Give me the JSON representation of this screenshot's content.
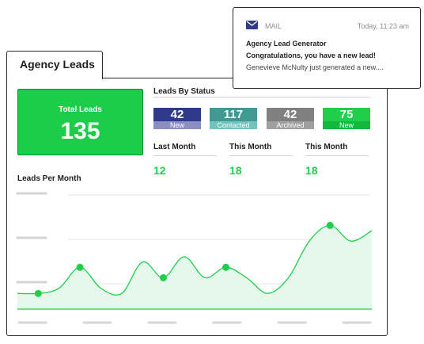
{
  "card": {
    "title": "Agency Leads"
  },
  "total_leads": {
    "label": "Total Leads",
    "value": "135"
  },
  "status_section": {
    "title": "Leads By Status",
    "items": [
      {
        "value": "42",
        "label": "New",
        "color": "#2f3a8c",
        "label_color": "#8a8ec3"
      },
      {
        "value": "117",
        "label": "Contacted",
        "color": "#3e9a93",
        "label_color": "#6fc4bc"
      },
      {
        "value": "42",
        "label": "Archived",
        "color": "#808080",
        "label_color": "#9f9f9f"
      },
      {
        "value": "75",
        "label": "New",
        "color": "#1fcf4a",
        "label_color": "#14b83d"
      }
    ]
  },
  "periods": [
    {
      "label": "Last Month",
      "value": "12"
    },
    {
      "label": "This Month",
      "value": "18"
    },
    {
      "label": "This Month",
      "value": "18"
    }
  ],
  "chart_title": "Leads Per Month",
  "chart_data": {
    "type": "area",
    "title": "Leads Per Month",
    "series": [
      {
        "values": [
          3,
          3,
          4,
          8,
          4,
          3,
          9,
          6,
          10,
          6,
          8,
          6,
          3,
          6,
          13,
          16,
          13,
          15
        ],
        "highlighted_indices": [
          1,
          3,
          7,
          10,
          15
        ]
      }
    ],
    "grid": true,
    "ylim": [
      0,
      20
    ],
    "line_color": "#1fcf4a",
    "fill_color": "#e6f7ec"
  },
  "mail": {
    "app": "MAIL",
    "time": "Today, 11:23 am",
    "sender": "Agency Lead Generator",
    "subject": "Congratulations, you have a new lead!",
    "preview": "Genevieve McNulty just generated a new...."
  }
}
